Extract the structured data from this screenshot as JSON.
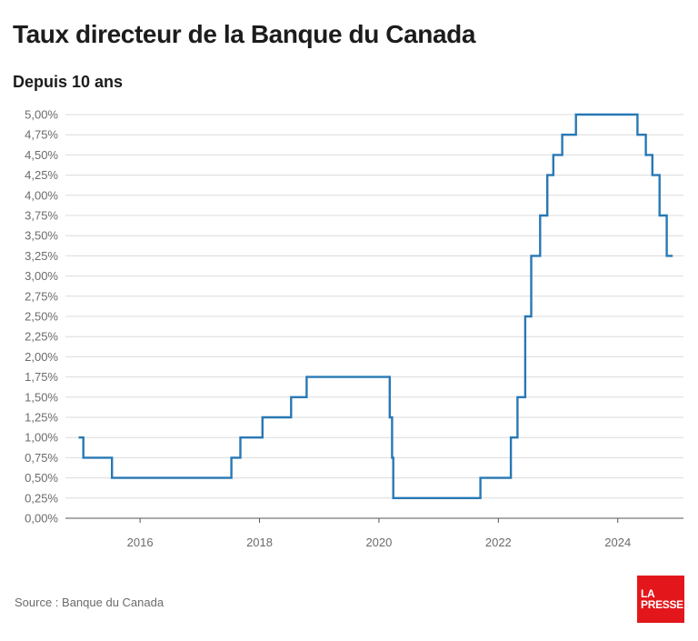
{
  "header": {
    "title": "Taux directeur de la Banque du Canada",
    "subtitle": "Depuis 10 ans"
  },
  "footer": {
    "source": "Source : Banque du Canada",
    "logo_line1": "LA",
    "logo_line2": "PRESSE"
  },
  "colors": {
    "line": "#2878b4",
    "grid": "#dcdcdc",
    "logo_bg": "#e3171b"
  },
  "chart_data": {
    "type": "line",
    "step": true,
    "title": "Taux directeur de la Banque du Canada",
    "subtitle": "Depuis 10 ans",
    "xlabel": "",
    "ylabel": "",
    "xlim": [
      2014.75,
      2025.1
    ],
    "ylim": [
      0,
      5
    ],
    "grid": true,
    "y_ticks": [
      0,
      0.25,
      0.5,
      0.75,
      1,
      1.25,
      1.5,
      1.75,
      2,
      2.25,
      2.5,
      2.75,
      3,
      3.25,
      3.5,
      3.75,
      4,
      4.25,
      4.5,
      4.75,
      5
    ],
    "y_tick_labels": [
      "0,00%",
      "0,25%",
      "0,50%",
      "0,75%",
      "1,00%",
      "1,25%",
      "1,50%",
      "1,75%",
      "2,00%",
      "2,25%",
      "2,50%",
      "2,75%",
      "3,00%",
      "3,25%",
      "3,50%",
      "3,75%",
      "4,00%",
      "4,25%",
      "4,50%",
      "4,75%",
      "5,00%"
    ],
    "x_ticks": [
      2016,
      2018,
      2020,
      2022,
      2024
    ],
    "x_tick_labels": [
      "2016",
      "2018",
      "2020",
      "2022",
      "2024"
    ],
    "series": [
      {
        "x": [
          2014.97,
          2015.05,
          2015.53,
          2017.53,
          2017.68,
          2018.05,
          2018.53,
          2018.79,
          2020.18,
          2020.22,
          2020.24,
          2021.7,
          2022.21,
          2022.32,
          2022.45,
          2022.55,
          2022.7,
          2022.82,
          2022.92,
          2023.07,
          2023.3,
          2023.46,
          2024.33,
          2024.47,
          2024.58,
          2024.7,
          2024.82,
          2024.92
        ],
        "y": [
          1.0,
          0.75,
          0.5,
          0.75,
          1.0,
          1.25,
          1.5,
          1.75,
          1.25,
          0.75,
          0.25,
          0.5,
          1.0,
          1.5,
          2.5,
          3.25,
          3.75,
          4.25,
          4.5,
          4.75,
          5.0,
          5.0,
          4.75,
          4.5,
          4.25,
          3.75,
          3.25,
          3.25
        ]
      }
    ]
  }
}
